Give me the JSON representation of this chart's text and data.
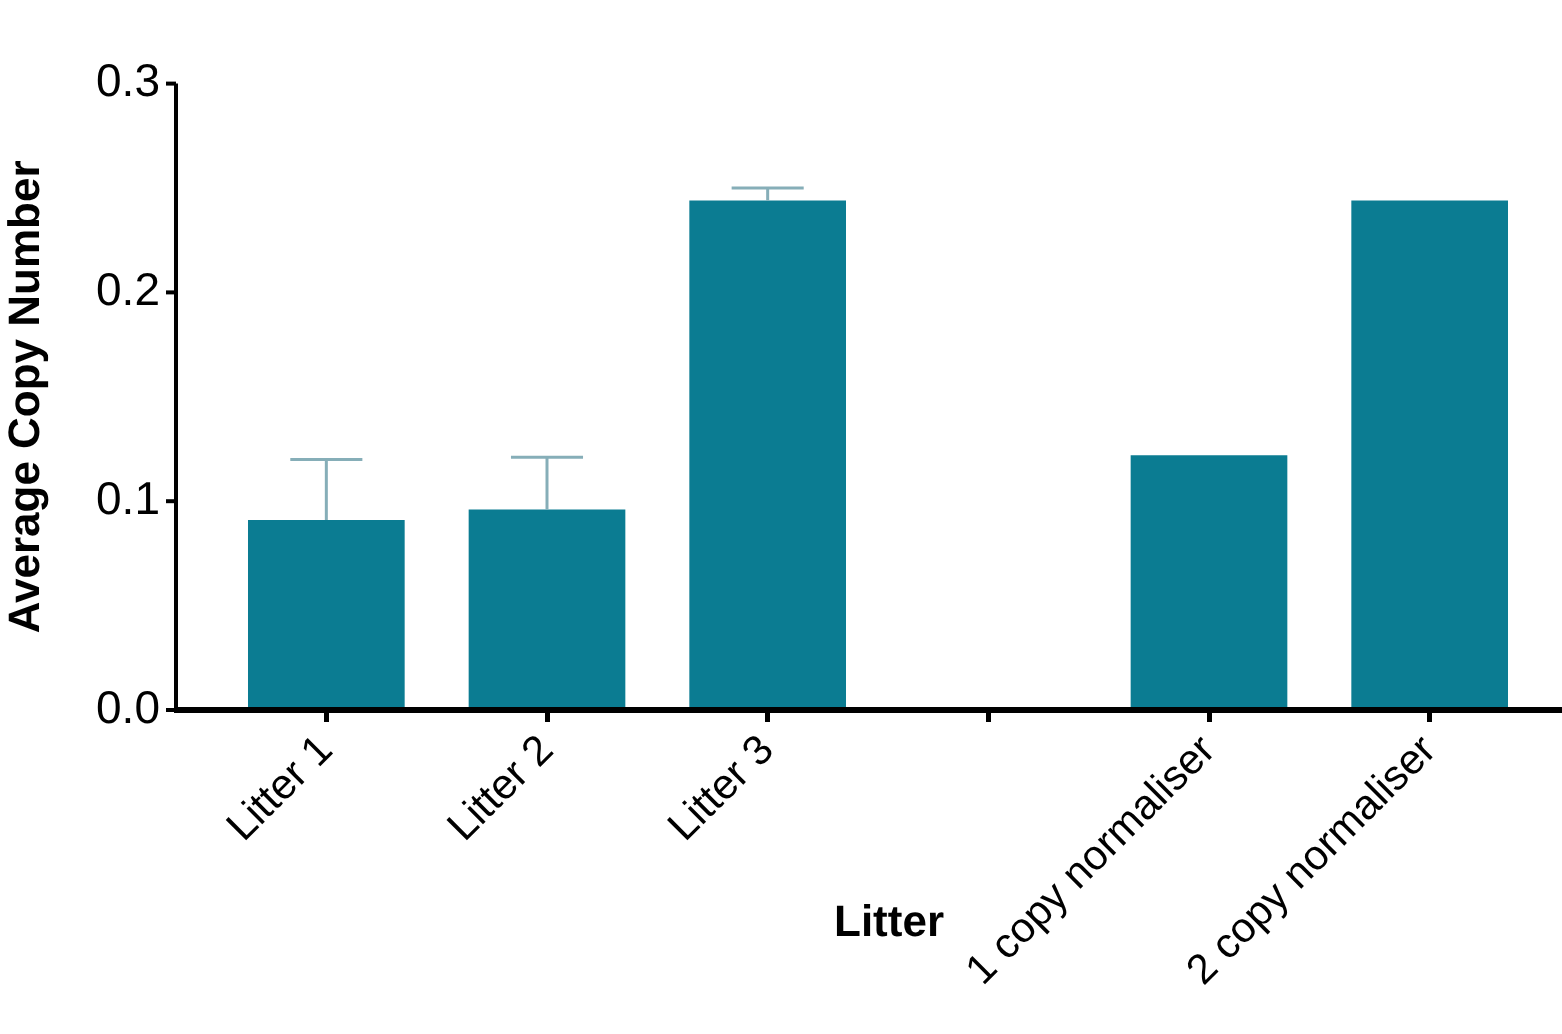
{
  "chart_data": {
    "type": "bar",
    "xlabel": "Litter",
    "ylabel": "Average Copy Number",
    "categories": [
      "Litter 1",
      "Litter 2",
      "Litter 3",
      null,
      "1 copy normaliser",
      "2 copy normaliser"
    ],
    "values": [
      0.091,
      0.096,
      0.244,
      null,
      0.122,
      0.244
    ],
    "errors": [
      [
        0.091,
        0.12
      ],
      [
        0.096,
        0.121
      ],
      [
        0.244,
        0.25
      ],
      null,
      null,
      null
    ],
    "color": "#0b7c92",
    "ylim": [
      0,
      0.3
    ],
    "yticks": [
      {
        "value": 0,
        "label": "0.0"
      },
      0.1,
      0.2,
      0.3
    ]
  }
}
